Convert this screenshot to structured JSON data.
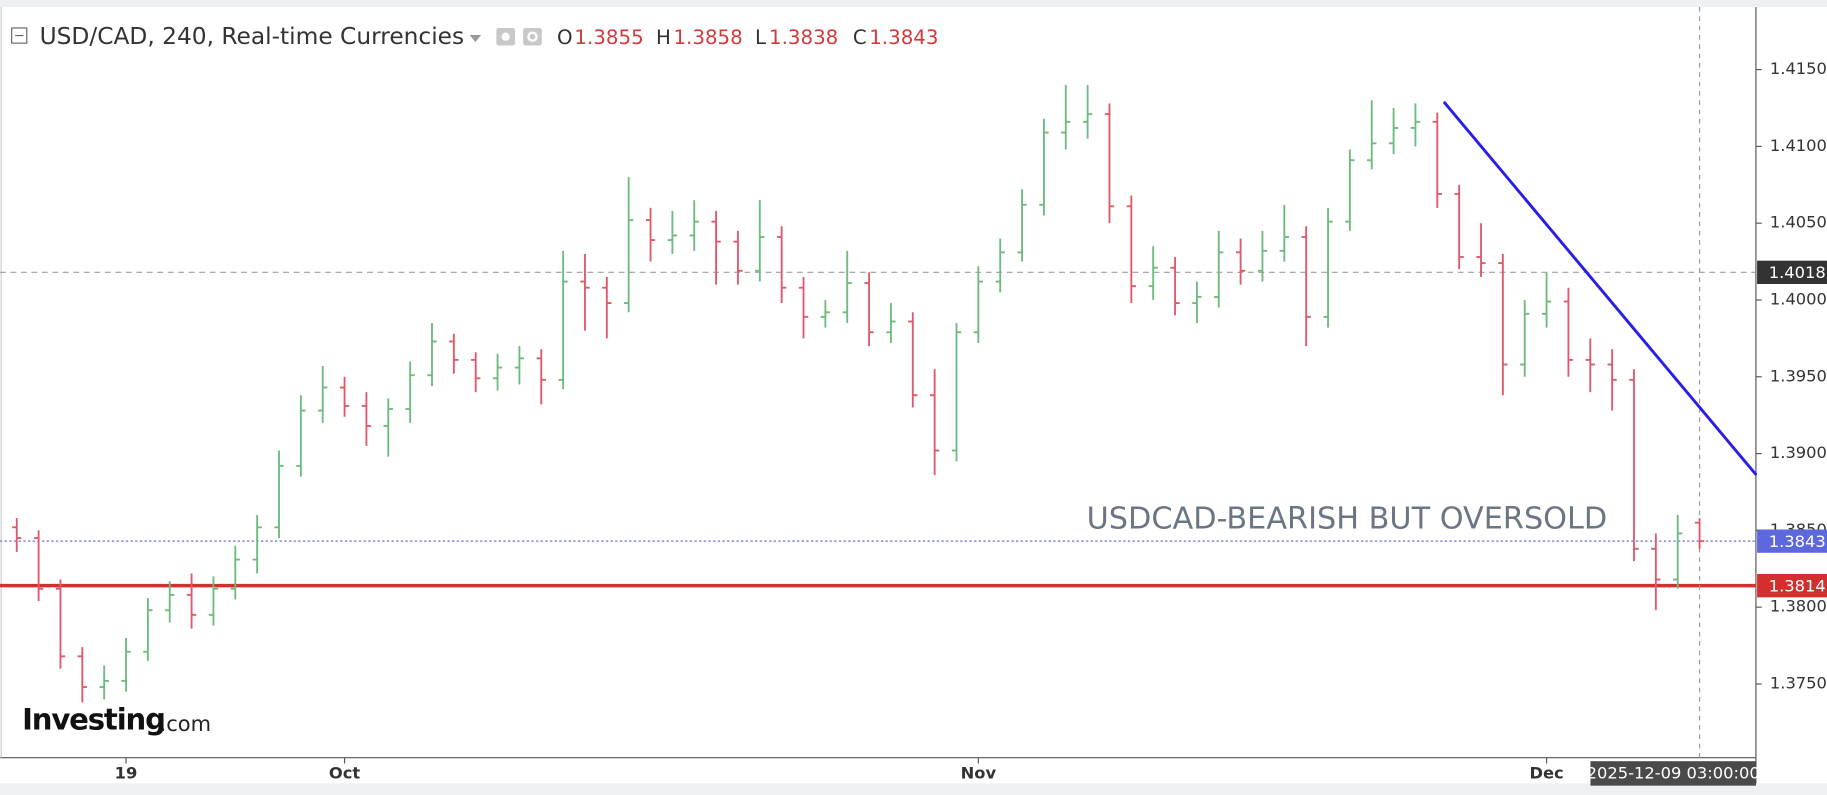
{
  "chart_data": {
    "type": "ohlc",
    "title": "USD/CAD, 240, Real-time Currencies",
    "header_ohlc": [
      {
        "label": "O",
        "value": 1.3855
      },
      {
        "label": "H",
        "value": 1.3858
      },
      {
        "label": "L",
        "value": 1.3838
      },
      {
        "label": "C",
        "value": 1.3843
      }
    ],
    "up_color": "#6dbb7f",
    "down_color": "#e0596a",
    "categories": [
      null,
      null,
      null,
      null,
      null,
      "19",
      null,
      null,
      null,
      null,
      null,
      null,
      null,
      null,
      null,
      "Oct",
      null,
      null,
      null,
      null,
      null,
      null,
      null,
      null,
      null,
      null,
      null,
      null,
      null,
      null,
      null,
      null,
      null,
      null,
      null,
      null,
      null,
      null,
      null,
      null,
      null,
      null,
      null,
      null,
      "Nov",
      null,
      null,
      null,
      null,
      null,
      null,
      null,
      null,
      null,
      null,
      null,
      null,
      null,
      null,
      null,
      null,
      null,
      null,
      null,
      null,
      null,
      null,
      null,
      null,
      null,
      "Dec",
      null,
      null,
      null,
      null,
      null,
      null,
      null
    ],
    "ohlc": [
      [
        1.3852,
        1.3858,
        1.3836,
        1.3845
      ],
      [
        1.3845,
        1.385,
        1.3804,
        1.3812
      ],
      [
        1.3812,
        1.3818,
        1.376,
        1.3768
      ],
      [
        1.3768,
        1.3774,
        1.3738,
        1.3748
      ],
      [
        1.3748,
        1.3762,
        1.374,
        1.3752
      ],
      [
        1.3752,
        1.378,
        1.3745,
        1.3771
      ],
      [
        1.3771,
        1.3806,
        1.3765,
        1.3798
      ],
      [
        1.3798,
        1.3817,
        1.379,
        1.3808
      ],
      [
        1.3808,
        1.3822,
        1.3786,
        1.3795
      ],
      [
        1.3795,
        1.382,
        1.3788,
        1.3812
      ],
      [
        1.3812,
        1.384,
        1.3805,
        1.3831
      ],
      [
        1.3831,
        1.386,
        1.3822,
        1.3852
      ],
      [
        1.3852,
        1.3902,
        1.3845,
        1.3892
      ],
      [
        1.3892,
        1.3938,
        1.3885,
        1.3928
      ],
      [
        1.3928,
        1.3957,
        1.392,
        1.3943
      ],
      [
        1.3943,
        1.395,
        1.3924,
        1.3931
      ],
      [
        1.3931,
        1.394,
        1.3905,
        1.3918
      ],
      [
        1.3918,
        1.3936,
        1.3898,
        1.3929
      ],
      [
        1.3929,
        1.396,
        1.392,
        1.3951
      ],
      [
        1.3951,
        1.3985,
        1.3944,
        1.3973
      ],
      [
        1.3973,
        1.3978,
        1.3952,
        1.3961
      ],
      [
        1.3961,
        1.3966,
        1.394,
        1.3949
      ],
      [
        1.3949,
        1.3965,
        1.3941,
        1.3956
      ],
      [
        1.3956,
        1.397,
        1.3945,
        1.3962
      ],
      [
        1.3962,
        1.3968,
        1.3932,
        1.3948
      ],
      [
        1.3948,
        1.4032,
        1.3942,
        1.4012
      ],
      [
        1.4012,
        1.403,
        1.398,
        1.4008
      ],
      [
        1.4008,
        1.4015,
        1.3975,
        1.3998
      ],
      [
        1.3998,
        1.408,
        1.3992,
        1.4052
      ],
      [
        1.4052,
        1.406,
        1.4025,
        1.4039
      ],
      [
        1.4039,
        1.4058,
        1.403,
        1.4042
      ],
      [
        1.4042,
        1.4065,
        1.4032,
        1.4051
      ],
      [
        1.4051,
        1.4058,
        1.401,
        1.4038
      ],
      [
        1.4038,
        1.4045,
        1.401,
        1.4019
      ],
      [
        1.4019,
        1.4065,
        1.4012,
        1.4041
      ],
      [
        1.4041,
        1.4048,
        1.3998,
        1.4008
      ],
      [
        1.4008,
        1.4015,
        1.3975,
        1.3989
      ],
      [
        1.3989,
        1.4,
        1.3982,
        1.3992
      ],
      [
        1.3992,
        1.4032,
        1.3985,
        1.4011
      ],
      [
        1.4011,
        1.4018,
        1.397,
        1.3979
      ],
      [
        1.3979,
        1.3998,
        1.3972,
        1.3986
      ],
      [
        1.3986,
        1.3992,
        1.393,
        1.3938
      ],
      [
        1.3938,
        1.3955,
        1.3886,
        1.3902
      ],
      [
        1.3902,
        1.3985,
        1.3895,
        1.3979
      ],
      [
        1.3979,
        1.4022,
        1.3972,
        1.4012
      ],
      [
        1.4012,
        1.404,
        1.4005,
        1.4031
      ],
      [
        1.4031,
        1.4072,
        1.4025,
        1.4062
      ],
      [
        1.4062,
        1.4118,
        1.4055,
        1.4109
      ],
      [
        1.4109,
        1.414,
        1.4098,
        1.4116
      ],
      [
        1.4116,
        1.414,
        1.4105,
        1.4121
      ],
      [
        1.4121,
        1.4128,
        1.405,
        1.4061
      ],
      [
        1.4061,
        1.4068,
        1.3998,
        1.4009
      ],
      [
        1.4009,
        1.4035,
        1.4,
        1.4021
      ],
      [
        1.4021,
        1.4028,
        1.399,
        1.3998
      ],
      [
        1.3998,
        1.4012,
        1.3985,
        1.4002
      ],
      [
        1.4002,
        1.4045,
        1.3995,
        1.4031
      ],
      [
        1.4031,
        1.404,
        1.401,
        1.4019
      ],
      [
        1.4019,
        1.4045,
        1.4012,
        1.4032
      ],
      [
        1.4032,
        1.4062,
        1.4025,
        1.4041
      ],
      [
        1.4041,
        1.4048,
        1.397,
        1.3989
      ],
      [
        1.3989,
        1.406,
        1.3982,
        1.4051
      ],
      [
        1.4051,
        1.4098,
        1.4045,
        1.4091
      ],
      [
        1.4091,
        1.413,
        1.4085,
        1.4102
      ],
      [
        1.4102,
        1.4125,
        1.4095,
        1.4112
      ],
      [
        1.4112,
        1.4128,
        1.41,
        1.4116
      ],
      [
        1.4116,
        1.4122,
        1.406,
        1.4069
      ],
      [
        1.4069,
        1.4075,
        1.402,
        1.4028
      ],
      [
        1.4028,
        1.405,
        1.4015,
        1.4024
      ],
      [
        1.4024,
        1.403,
        1.3938,
        1.3958
      ],
      [
        1.3958,
        1.4,
        1.395,
        1.3991
      ],
      [
        1.3991,
        1.4018,
        1.3982,
        1.3999
      ],
      [
        1.3999,
        1.4008,
        1.395,
        1.3961
      ],
      [
        1.3961,
        1.3975,
        1.394,
        1.3958
      ],
      [
        1.3958,
        1.3968,
        1.3928,
        1.3948
      ],
      [
        1.3948,
        1.3955,
        1.383,
        1.3838
      ],
      [
        1.3838,
        1.3848,
        1.3798,
        1.3818
      ],
      [
        1.3818,
        1.386,
        1.3812,
        1.3848
      ],
      [
        1.3855,
        1.3858,
        1.3838,
        1.3843
      ]
    ],
    "ylim": [
      1.3702,
      1.419
    ],
    "yticks": [
      {
        "value": 1.375,
        "label": "1.3750"
      },
      {
        "value": 1.38,
        "label": "1.3800"
      },
      {
        "value": 1.385,
        "label": "1.3850"
      },
      {
        "value": 1.39,
        "label": "1.3900"
      },
      {
        "value": 1.395,
        "label": "1.3950"
      },
      {
        "value": 1.4,
        "label": "1.4000"
      },
      {
        "value": 1.405,
        "label": "1.4050"
      },
      {
        "value": 1.41,
        "label": "1.4100"
      },
      {
        "value": 1.415,
        "label": "1.4150"
      }
    ],
    "levels": [
      {
        "value": 1.4018,
        "color": "#9e9e9e",
        "style": "dashed",
        "label_bg": "#333333"
      },
      {
        "value": 1.3843,
        "color": "#6a72e0",
        "style": "dotted",
        "label_bg": "#5c68dc"
      },
      {
        "value": 1.3814,
        "color": "#d32f2f",
        "style": "solid",
        "label_bg": "#d32f2f"
      }
    ],
    "trendline": {
      "color": "#2a1ee6",
      "points": [
        {
          "bar": 65.3,
          "price": 1.4129
        },
        {
          "bar": 79.6,
          "price": 1.3886
        }
      ]
    },
    "annotation": "USDCAD-BEARISH BUT OVERSOLD",
    "crosshair_label": "2025-12-09 03:00:00",
    "logo": {
      "brand": "Investing",
      "suffix": ".com"
    }
  }
}
